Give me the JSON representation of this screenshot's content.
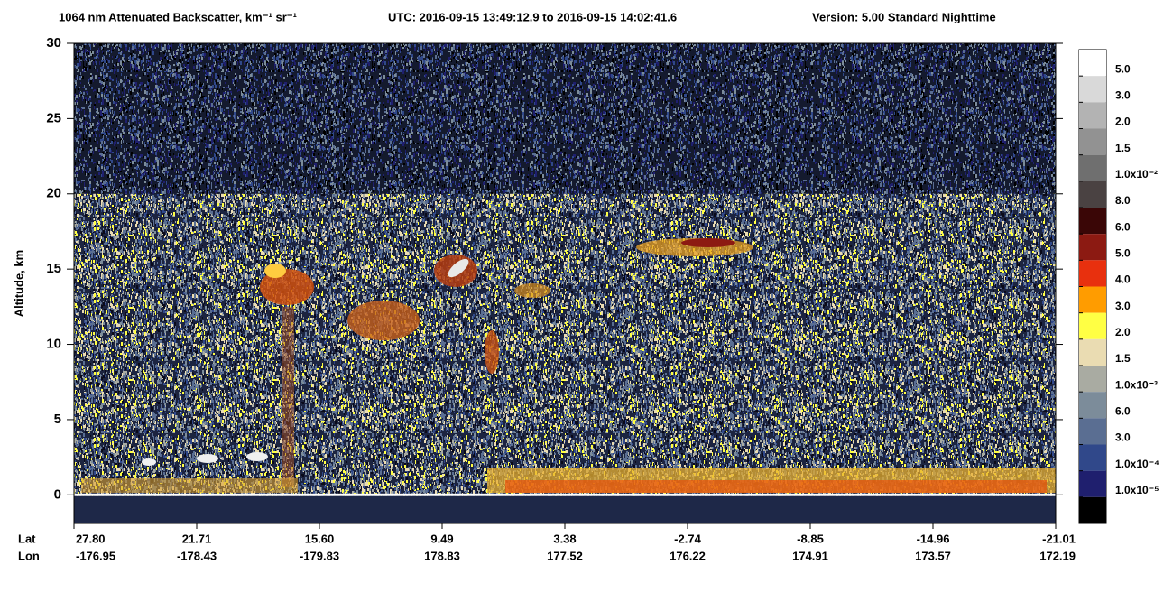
{
  "chart_data": {
    "type": "heatmap",
    "title": "1064 nm Attenuated Backscatter, km⁻¹ sr⁻¹",
    "time_range": "UTC:  2016-09-15 13:49:12.9  to  2016-09-15 14:02:41.6",
    "version": "Version: 5.00  Standard  Nighttime",
    "y_label": "Altitude, km",
    "ylim": [
      -1.9,
      30
    ],
    "yticks": [
      0,
      5,
      10,
      15,
      20,
      25,
      30
    ],
    "x_row_labels": [
      "Lat",
      "Lon"
    ],
    "lat": [
      "27.80",
      "21.71",
      "15.60",
      "9.49",
      "3.38",
      "-2.74",
      "-8.85",
      "-14.96",
      "-21.01"
    ],
    "lon": [
      "-176.95",
      "-178.43",
      "-179.83",
      "178.83",
      "177.52",
      "176.22",
      "174.91",
      "173.57",
      "172.19"
    ],
    "colorbar": {
      "colors": [
        "#ffffff",
        "#d9d9d9",
        "#b3b3b3",
        "#929292",
        "#6f6f6f",
        "#4a4242",
        "#3a0606",
        "#8c1a12",
        "#e8300e",
        "#ff9c00",
        "#ffff44",
        "#eadcb2",
        "#a9aba2",
        "#7c8c9a",
        "#5a6e92",
        "#30488a",
        "#1f1f6e",
        "#000000"
      ],
      "labels": [
        "5.0",
        "3.0",
        "2.0",
        "1.5",
        "1.0x10⁻²",
        "8.0",
        "6.0",
        "5.0",
        "4.0",
        "3.0",
        "2.0",
        "1.5",
        "1.0x10⁻³",
        "6.0",
        "3.0",
        "1.0x10⁻⁴",
        "1.0x10⁻⁵"
      ]
    }
  }
}
